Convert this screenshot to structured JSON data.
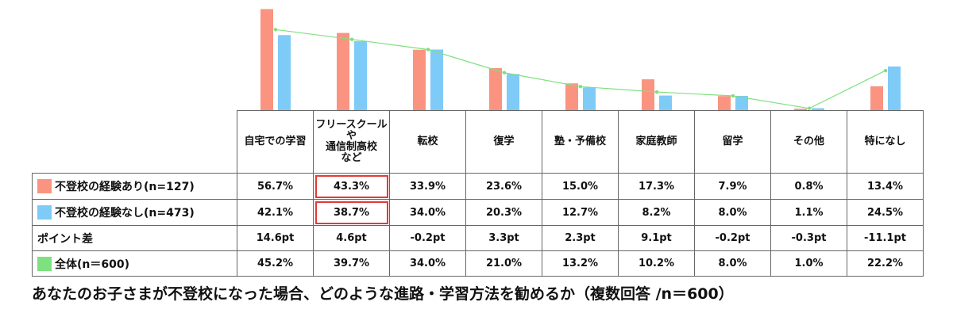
{
  "chart_data": {
    "type": "bar",
    "title": "あなたのお子さまが不登校になった場合、どのような進路・学習方法を勧めるか（複数回答 /n＝600）",
    "categories": [
      "自宅での学習",
      "フリースクール\nや\n通信制高校\nなど",
      "転校",
      "復学",
      "塾・予備校",
      "家庭教師",
      "留学",
      "その他",
      "特になし"
    ],
    "series": [
      {
        "name": "不登校の経験あり(n=127)",
        "values": [
          56.7,
          43.3,
          33.9,
          23.6,
          15.0,
          17.3,
          7.9,
          0.8,
          13.4
        ],
        "labels": [
          "56.7%",
          "43.3%",
          "33.9%",
          "23.6%",
          "15.0%",
          "17.3%",
          "7.9%",
          "0.8%",
          "13.4%"
        ],
        "color": "#fa9480",
        "kind": "bar"
      },
      {
        "name": "不登校の経験なし(n=473)",
        "values": [
          42.1,
          38.7,
          34.0,
          20.3,
          12.7,
          8.2,
          8.0,
          1.1,
          24.5
        ],
        "labels": [
          "42.1%",
          "38.7%",
          "34.0%",
          "20.3%",
          "12.7%",
          "8.2%",
          "8.0%",
          "1.1%",
          "24.5%"
        ],
        "color": "#7ecbf8",
        "kind": "bar"
      },
      {
        "name": "全体(n＝600)",
        "values": [
          45.2,
          39.7,
          34.0,
          21.0,
          13.2,
          10.2,
          8.0,
          1.0,
          22.2
        ],
        "labels": [
          "45.2%",
          "39.7%",
          "34.0%",
          "21.0%",
          "13.2%",
          "10.2%",
          "8.0%",
          "1.0%",
          "22.2%"
        ],
        "color": "#7fe07f",
        "kind": "line"
      }
    ],
    "diff_row": {
      "name": "ポイント差",
      "labels": [
        "14.6pt",
        "4.6pt",
        "-0.2pt",
        "3.3pt",
        "2.3pt",
        "9.1pt",
        "-0.2pt",
        "-0.3pt",
        "-11.1pt"
      ]
    },
    "row_label_names": [
      "不登校の経験あり(n=127)",
      "不登校の経験なし(n=473)",
      "ポイント差",
      "全体(n＝600)"
    ],
    "highlighted_column": "フリースクール\nや\n通信制高校\nなど",
    "ylim": [
      0,
      60
    ],
    "grid": false,
    "legend": "table-left"
  }
}
